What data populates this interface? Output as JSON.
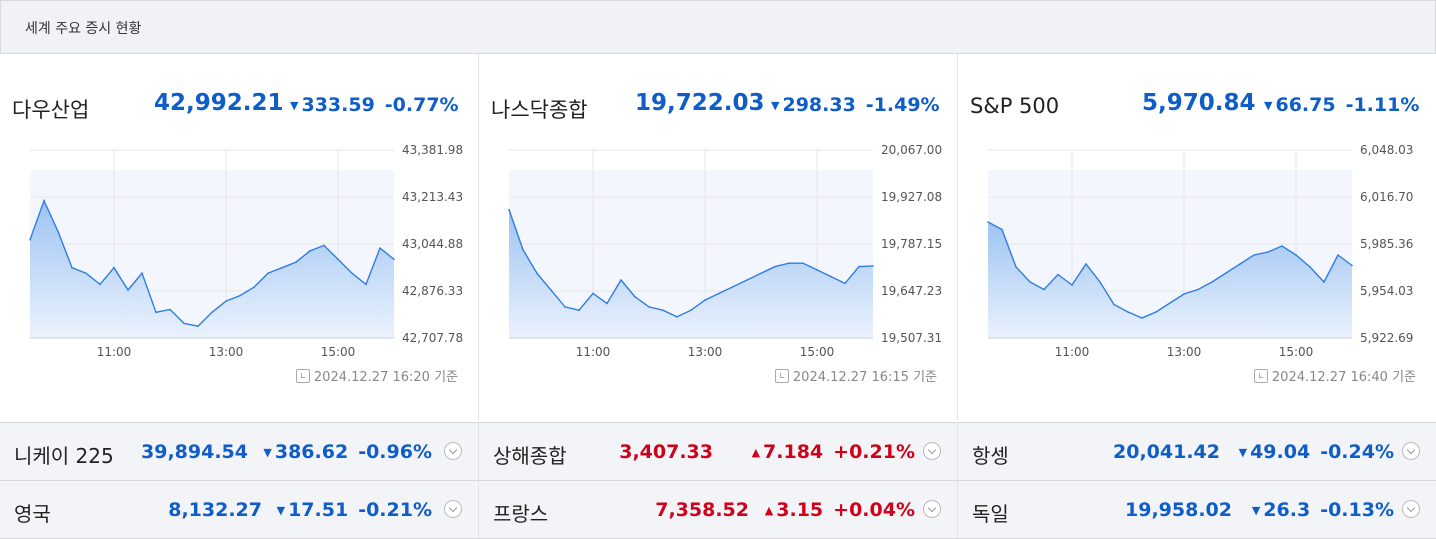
{
  "header": {
    "title": "세계 주요 증시 현황"
  },
  "icons": {
    "down_arrow": "▼",
    "up_arrow": "▲",
    "clock": "clock-icon",
    "expand": "chevron-down-circle-icon"
  },
  "colors": {
    "down": "#0f5dc8",
    "up": "#d0021b",
    "area_top": "#9ec3f2",
    "area_bottom": "#eaf2fd",
    "line": "#2f7de1"
  },
  "panels": [
    {
      "name": "다우산업",
      "value": "42,992.21",
      "change": "333.59",
      "percent": "-0.77%",
      "direction": "down",
      "timestamp": "2024.12.27 16:20 기준",
      "chart_data": {
        "type": "area",
        "yticks": [
          "43,381.98",
          "43,213.43",
          "43,044.88",
          "42,876.33",
          "42,707.78"
        ],
        "xticks": [
          "11:00",
          "13:00",
          "15:00"
        ],
        "ylim": [
          42707.78,
          43381.98
        ],
        "x": [
          "09:30",
          "09:45",
          "10:00",
          "10:15",
          "10:30",
          "10:45",
          "11:00",
          "11:15",
          "11:30",
          "11:45",
          "12:00",
          "12:15",
          "12:30",
          "12:45",
          "13:00",
          "13:15",
          "13:30",
          "13:45",
          "14:00",
          "14:15",
          "14:30",
          "14:45",
          "15:00",
          "15:15",
          "15:30",
          "15:45",
          "16:00"
        ],
        "values": [
          43060,
          43200,
          43090,
          42960,
          42940,
          42900,
          42960,
          42880,
          42940,
          42800,
          42810,
          42760,
          42750,
          42800,
          42840,
          42860,
          42890,
          42940,
          42960,
          42980,
          43020,
          43040,
          42990,
          42940,
          42900,
          43030,
          42990
        ]
      }
    },
    {
      "name": "나스닥종합",
      "value": "19,722.03",
      "change": "298.33",
      "percent": "-1.49%",
      "direction": "down",
      "timestamp": "2024.12.27 16:15 기준",
      "chart_data": {
        "type": "area",
        "yticks": [
          "20,067.00",
          "19,927.08",
          "19,787.15",
          "19,647.23",
          "19,507.31"
        ],
        "xticks": [
          "11:00",
          "13:00",
          "15:00"
        ],
        "ylim": [
          19507.31,
          20067.0
        ],
        "x": [
          "09:30",
          "09:45",
          "10:00",
          "10:15",
          "10:30",
          "10:45",
          "11:00",
          "11:15",
          "11:30",
          "11:45",
          "12:00",
          "12:15",
          "12:30",
          "12:45",
          "13:00",
          "13:15",
          "13:30",
          "13:45",
          "14:00",
          "14:15",
          "14:30",
          "14:45",
          "15:00",
          "15:15",
          "15:30",
          "15:45",
          "16:00"
        ],
        "values": [
          19890,
          19770,
          19700,
          19650,
          19600,
          19590,
          19640,
          19610,
          19680,
          19630,
          19600,
          19590,
          19570,
          19590,
          19620,
          19640,
          19660,
          19680,
          19700,
          19720,
          19730,
          19730,
          19710,
          19690,
          19670,
          19720,
          19722
        ]
      }
    },
    {
      "name": "S&P 500",
      "value": "5,970.84",
      "change": "66.75",
      "percent": "-1.11%",
      "direction": "down",
      "timestamp": "2024.12.27 16:40 기준",
      "chart_data": {
        "type": "area",
        "yticks": [
          "6,048.03",
          "6,016.70",
          "5,985.36",
          "5,954.03",
          "5,922.69"
        ],
        "xticks": [
          "11:00",
          "13:00",
          "15:00"
        ],
        "ylim": [
          5922.69,
          6048.03
        ],
        "x": [
          "09:30",
          "09:45",
          "10:00",
          "10:15",
          "10:30",
          "10:45",
          "11:00",
          "11:15",
          "11:30",
          "11:45",
          "12:00",
          "12:15",
          "12:30",
          "12:45",
          "13:00",
          "13:15",
          "13:30",
          "13:45",
          "14:00",
          "14:15",
          "14:30",
          "14:45",
          "15:00",
          "15:15",
          "15:30",
          "15:45",
          "16:00"
        ],
        "values": [
          6000,
          5995,
          5970,
          5960,
          5955,
          5965,
          5958,
          5972,
          5960,
          5945,
          5940,
          5936,
          5940,
          5946,
          5952,
          5955,
          5960,
          5966,
          5972,
          5978,
          5980,
          5984,
          5978,
          5970,
          5960,
          5978,
          5971
        ]
      }
    }
  ],
  "rows": [
    [
      {
        "name": "니케이 225",
        "value": "39,894.54",
        "change": "386.62",
        "percent": "-0.96%",
        "direction": "down"
      },
      {
        "name": "상해종합",
        "value": "3,407.33",
        "change": "7.184",
        "percent": "+0.21%",
        "direction": "up"
      },
      {
        "name": "항셍",
        "value": "20,041.42",
        "change": "49.04",
        "percent": "-0.24%",
        "direction": "down"
      }
    ],
    [
      {
        "name": "영국",
        "value": "8,132.27",
        "change": "17.51",
        "percent": "-0.21%",
        "direction": "down"
      },
      {
        "name": "프랑스",
        "value": "7,358.52",
        "change": "3.15",
        "percent": "+0.04%",
        "direction": "up"
      },
      {
        "name": "독일",
        "value": "19,958.02",
        "change": "26.3",
        "percent": "-0.13%",
        "direction": "down"
      }
    ]
  ]
}
